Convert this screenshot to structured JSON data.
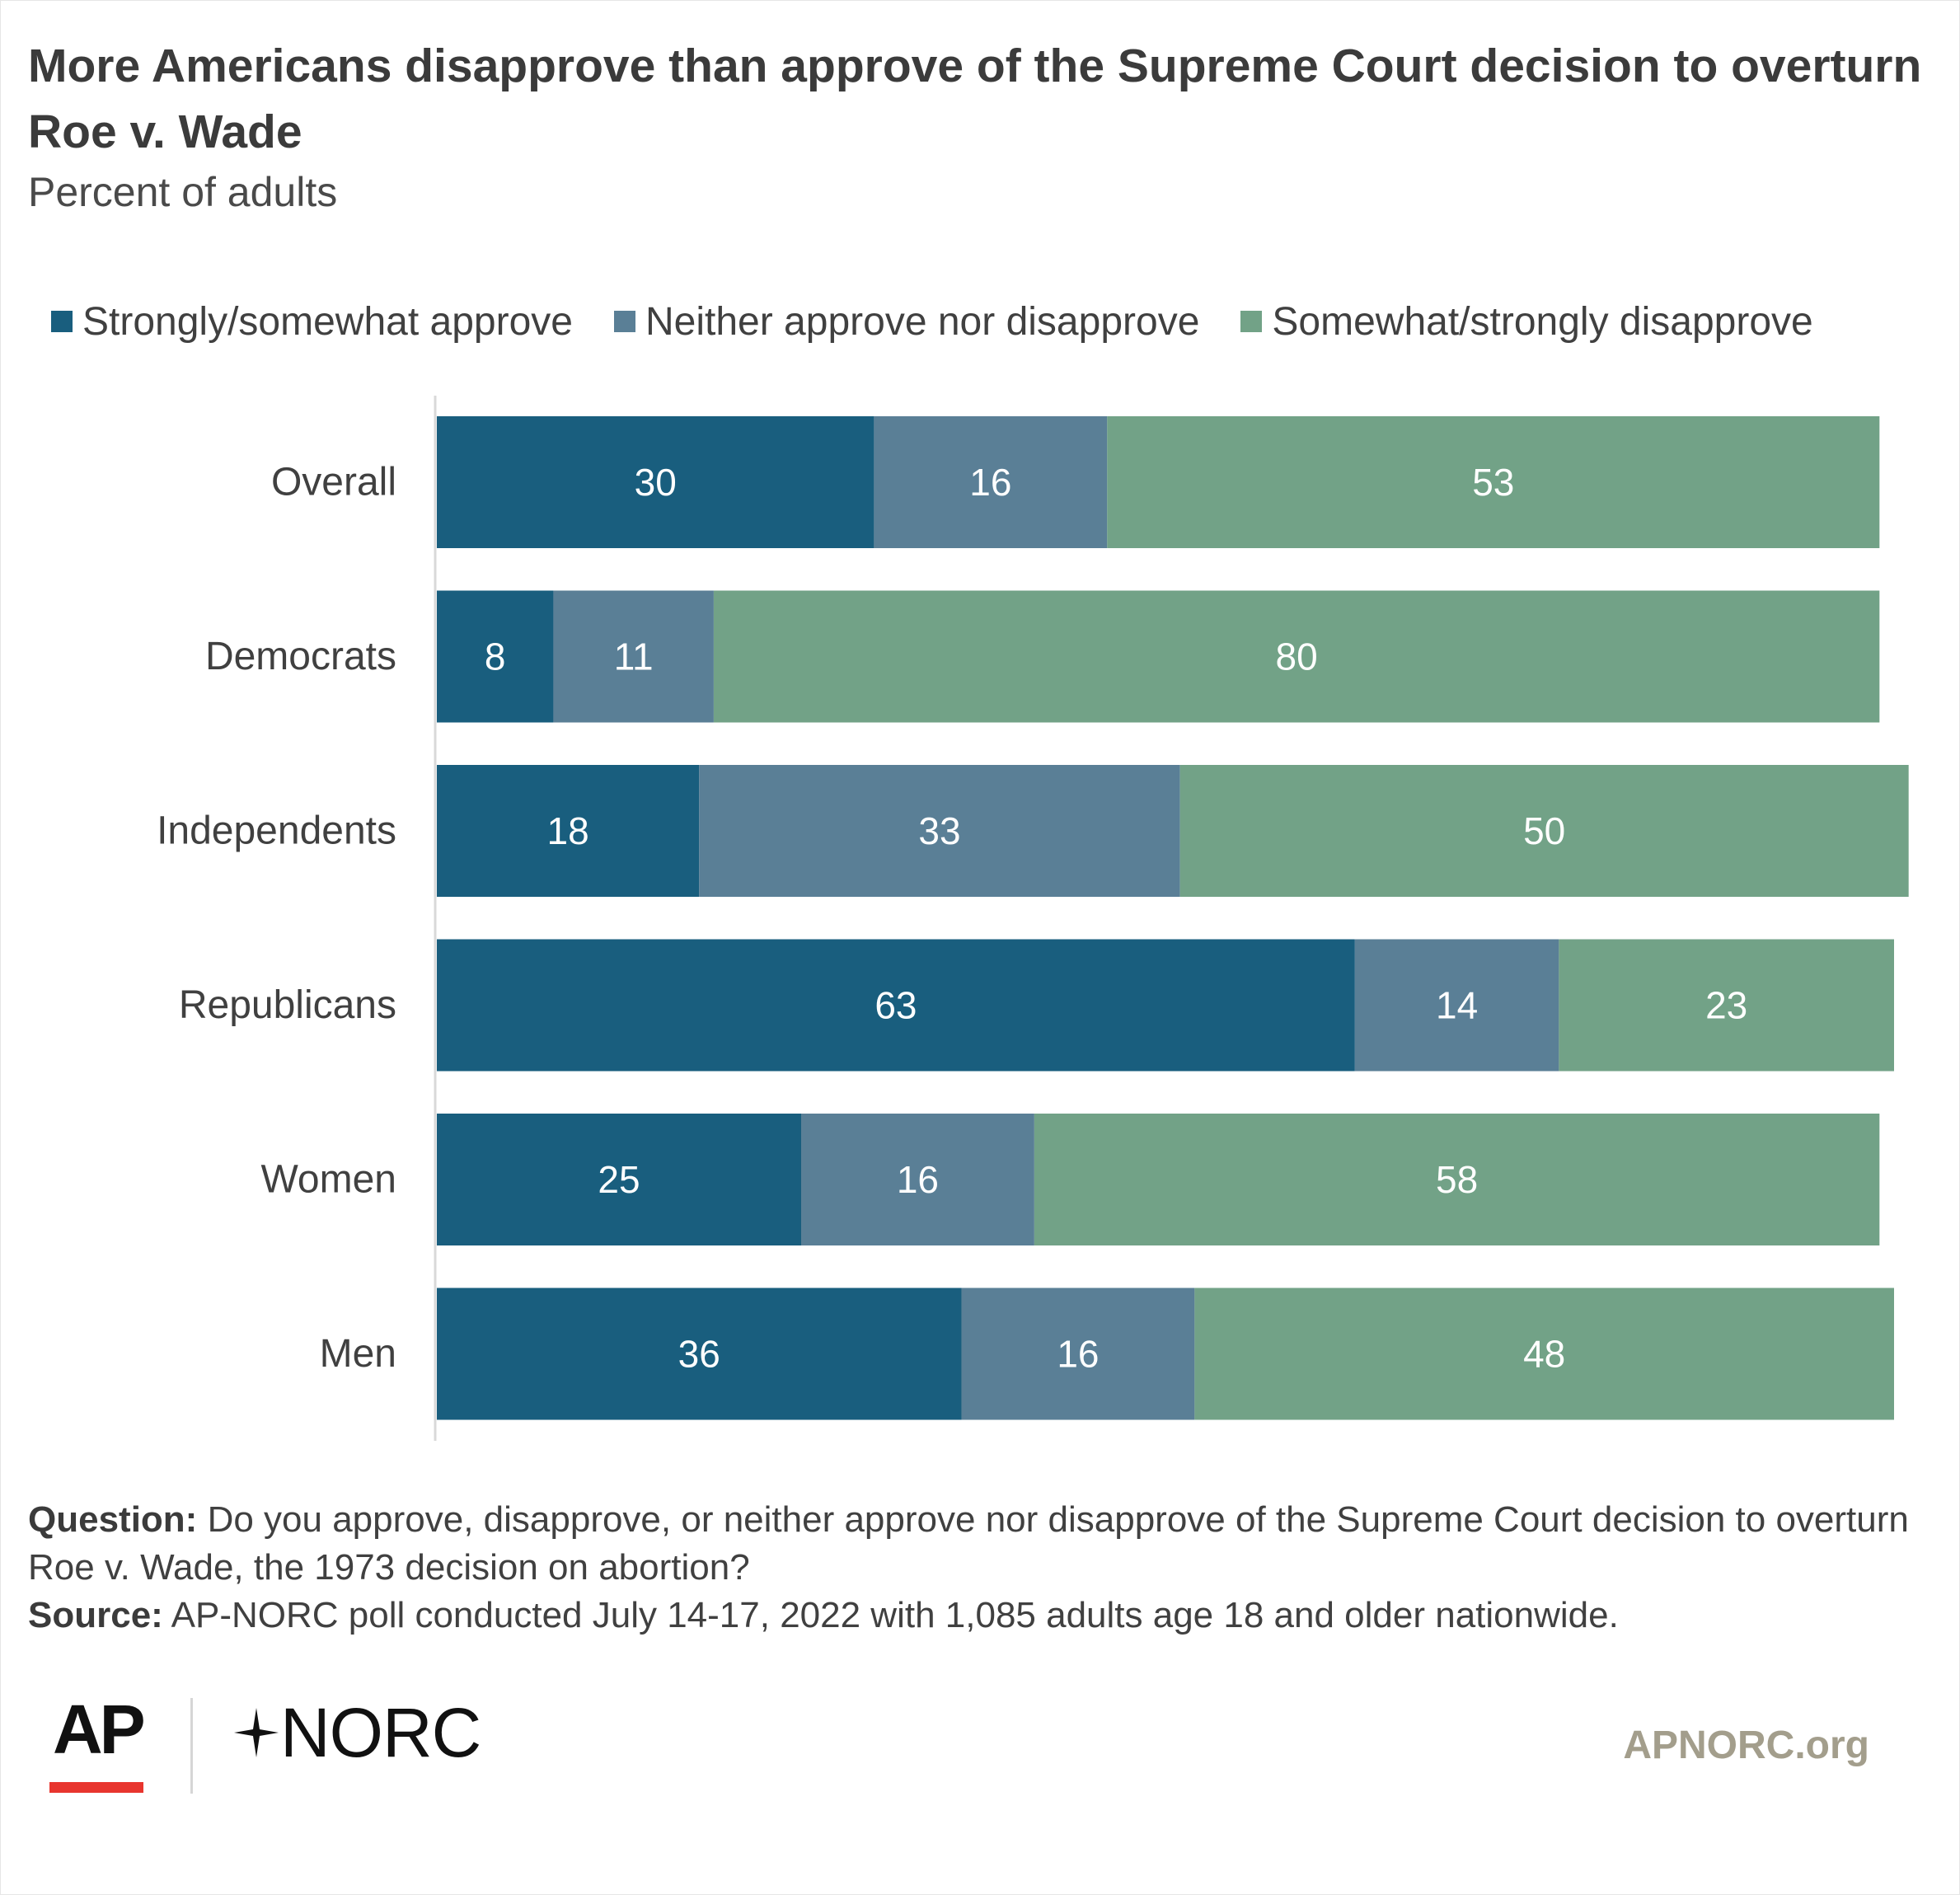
{
  "title": "More Americans disapprove than approve of the Supreme Court decision to overturn Roe v. Wade",
  "subtitle": "Percent of adults",
  "colors": {
    "approve": "#195e7e",
    "neither": "#5a7f96",
    "disapprove": "#72a287",
    "label_text": "#ffffff",
    "axis_line": "#d9d9d9"
  },
  "chart_data": {
    "type": "bar",
    "orientation": "horizontal",
    "stacked": true,
    "categories": [
      "Overall",
      "Democrats",
      "Independents",
      "Republicans",
      "Women",
      "Men"
    ],
    "series": [
      {
        "name": "Strongly/somewhat approve",
        "values": [
          30,
          8,
          18,
          63,
          25,
          36
        ]
      },
      {
        "name": "Neither approve nor disapprove",
        "values": [
          16,
          11,
          33,
          14,
          16,
          16
        ]
      },
      {
        "name": "Somewhat/strongly disapprove",
        "values": [
          53,
          80,
          50,
          23,
          58,
          48
        ]
      }
    ],
    "xlim": [
      0,
      100
    ],
    "legend_position": "top",
    "grid": false,
    "data_labels": true
  },
  "notes": {
    "question_label": "Question:",
    "question_text": "Do you approve, disapprove, or neither approve nor disapprove of the Supreme Court decision to overturn Roe v. Wade, the 1973 decision on abortion?",
    "source_label": "Source:",
    "source_text": "AP-NORC poll conducted July 14-17, 2022 with 1,085 adults age 18 and older nationwide."
  },
  "footer": {
    "logo_ap": "AP",
    "logo_norc": "NORC",
    "site": "APNORC.org"
  }
}
